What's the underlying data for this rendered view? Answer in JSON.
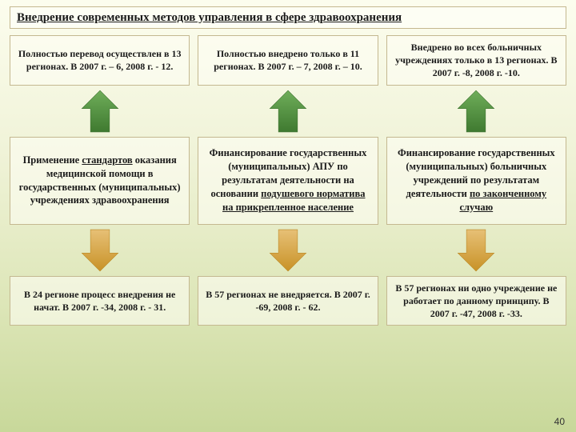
{
  "title": "Внедрение современных методов управления в сфере здравоохранения",
  "page_number": "40",
  "arrow": {
    "up_fill": "#4f8f3f",
    "down_fill": "#d8a93f",
    "width": 54,
    "height": 58
  },
  "columns": [
    {
      "top": "Полностью перевод осуществлен в 13 регионах. В 2007 г. – 6, 2008 г. - 12.",
      "middle_html": "Применение <u>стандартов</u> оказания медицинской помощи в государственных (муниципальных) учреждениях здравоохранения",
      "bottom": "В 24 регионе процесс внедрения не начат.\nВ 2007 г. -34, 2008 г. - 31."
    },
    {
      "top": "Полностью внедрено только в 11 регионах. В 2007 г. – 7, 2008 г. – 10.",
      "middle_html": "Финансирование государственных (муниципальных) АПУ по результатам деятельности на основании <u>подушевого норматива на прикрепленное население</u>",
      "bottom": "В 57 регионах не внедряется.\nВ 2007 г. -69, 2008 г. - 62."
    },
    {
      "top": "Внедрено во всех больничных учреждениях только в 13 регионах. В 2007 г. -8,  2008 г. -10.",
      "middle_html": "Финансирование государственных (муниципальных) больничных учреждений по результатам деятельности <u>по законченному случаю</u>",
      "bottom": "В 57 регионах ни одно учреждение не работает по данному принципу.\nВ 2007 г. -47, 2008 г. -33."
    }
  ],
  "style": {
    "cell_border": "#c4b890",
    "cell_bg": "rgba(253,254,244,0.6)",
    "bg_gradient": [
      "#fcfdee",
      "#f0f3d8",
      "#dde6b8",
      "#c8d89a"
    ],
    "font_family": "Times New Roman",
    "title_fontsize": 15,
    "cell_fontsize": 12
  }
}
